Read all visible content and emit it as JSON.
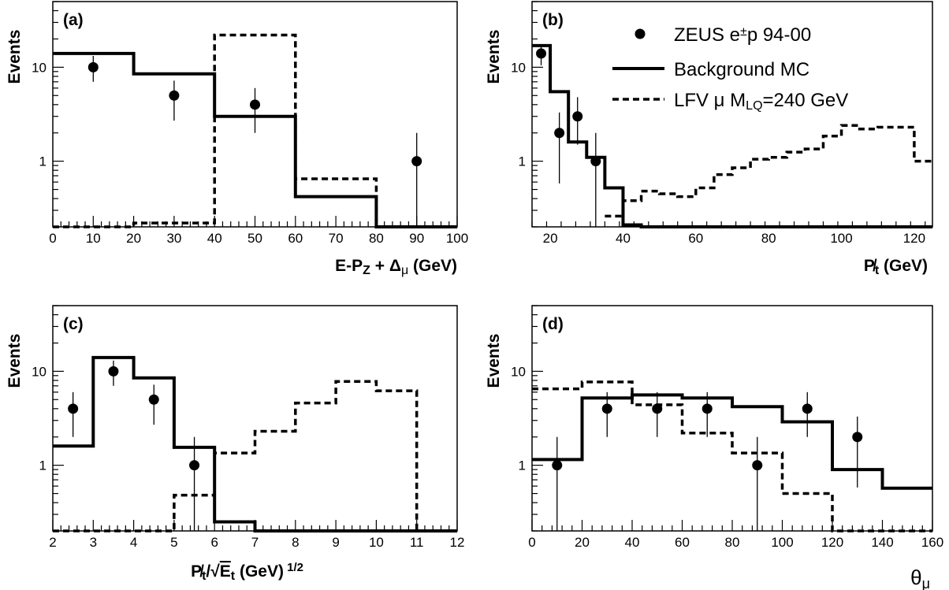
{
  "chart_data": [
    {
      "type": "histogram",
      "panel_label": "(a)",
      "xlabel": "E-P_Z + Δ_μ (GeV)",
      "ylabel": "Events",
      "xlim": [
        0,
        100
      ],
      "ylim": [
        0.2,
        50
      ],
      "log_y": true,
      "x_ticks": [
        0,
        10,
        20,
        30,
        40,
        50,
        60,
        70,
        80,
        90,
        100
      ],
      "x_tick_labels": [
        "0",
        "10",
        "20",
        "30",
        "40",
        "50",
        "60",
        "70",
        "80",
        "90",
        "100"
      ],
      "y_tick_labels": [
        "1",
        "10"
      ],
      "series": [
        {
          "name": "ZEUS e±p 94-00",
          "style": "points",
          "points": [
            {
              "x": 10,
              "y": 10,
              "lo": 7,
              "hi": 13.2
            },
            {
              "x": 30,
              "y": 5,
              "lo": 2.7,
              "hi": 7.2
            },
            {
              "x": 50,
              "y": 4,
              "lo": 2.0,
              "hi": 6.0
            },
            {
              "x": 90,
              "y": 1,
              "lo": 0.2,
              "hi": 2.0
            }
          ]
        },
        {
          "name": "Background MC",
          "style": "solid",
          "edges": [
            0,
            20,
            40,
            60,
            80,
            100
          ],
          "values": [
            14,
            8.5,
            3.0,
            0.42,
            0.19
          ]
        },
        {
          "name": "LFV μ M_LQ=240 GeV",
          "style": "dashed",
          "edges": [
            0,
            20,
            40,
            60,
            80,
            100
          ],
          "values": [
            0.2,
            0.22,
            22,
            0.65,
            0.19
          ]
        }
      ]
    },
    {
      "type": "histogram",
      "panel_label": "(b)",
      "xlabel": "P̸_t (GeV)",
      "ylabel": "Events",
      "xlim": [
        15,
        125
      ],
      "ylim": [
        0.2,
        50
      ],
      "log_y": true,
      "x_ticks": [
        20,
        40,
        60,
        80,
        100,
        120
      ],
      "x_tick_labels": [
        "20",
        "40",
        "60",
        "80",
        "100",
        "120"
      ],
      "y_tick_labels": [
        "1",
        "10"
      ],
      "series": [
        {
          "name": "ZEUS e±p 94-00",
          "style": "points",
          "points": [
            {
              "x": 17.5,
              "y": 14,
              "lo": 10.5,
              "hi": 17.5
            },
            {
              "x": 22.5,
              "y": 2,
              "lo": 0.58,
              "hi": 3.3
            },
            {
              "x": 27.5,
              "y": 3,
              "lo": 1.5,
              "hi": 4.8
            },
            {
              "x": 32.5,
              "y": 1,
              "lo": 0.2,
              "hi": 2.0
            }
          ]
        },
        {
          "name": "Background MC",
          "style": "solid",
          "edges": [
            15,
            20,
            25,
            30,
            35,
            40,
            45,
            125
          ],
          "values": [
            17,
            5.5,
            1.6,
            1.1,
            0.52,
            0.21,
            0.19
          ]
        },
        {
          "name": "LFV μ M_LQ=240 GeV",
          "style": "dashed",
          "edges": [
            35,
            40,
            45,
            50,
            55,
            60,
            65,
            70,
            75,
            80,
            85,
            90,
            95,
            100,
            105,
            110,
            115,
            120,
            125
          ],
          "values": [
            0.26,
            0.38,
            0.48,
            0.45,
            0.42,
            0.52,
            0.72,
            0.85,
            1.05,
            1.1,
            1.25,
            1.35,
            1.85,
            2.4,
            2.2,
            2.3,
            2.3,
            1.0
          ]
        }
      ]
    },
    {
      "type": "histogram",
      "panel_label": "(c)",
      "xlabel": "P̸_t/√E_t (GeV)^1/2",
      "ylabel": "Events",
      "xlim": [
        2,
        12
      ],
      "ylim": [
        0.2,
        50
      ],
      "log_y": true,
      "x_ticks": [
        2,
        3,
        4,
        5,
        6,
        7,
        8,
        9,
        10,
        11,
        12
      ],
      "x_tick_labels": [
        "2",
        "3",
        "4",
        "5",
        "6",
        "7",
        "8",
        "9",
        "10",
        "11",
        "12"
      ],
      "y_tick_labels": [
        "1",
        "10"
      ],
      "series": [
        {
          "name": "ZEUS e±p 94-00",
          "style": "points",
          "points": [
            {
              "x": 2.5,
              "y": 4,
              "lo": 2.0,
              "hi": 6.0
            },
            {
              "x": 3.5,
              "y": 10,
              "lo": 7,
              "hi": 13
            },
            {
              "x": 4.5,
              "y": 5,
              "lo": 2.7,
              "hi": 7.2
            },
            {
              "x": 5.5,
              "y": 1,
              "lo": 0.2,
              "hi": 2.0
            }
          ]
        },
        {
          "name": "Background MC",
          "style": "solid",
          "edges": [
            2,
            3,
            4,
            5,
            6,
            7,
            12
          ],
          "values": [
            1.6,
            14,
            8.5,
            1.55,
            0.25,
            0.19
          ]
        },
        {
          "name": "LFV μ M_LQ=240 GeV",
          "style": "dashed",
          "edges": [
            2,
            5,
            6,
            7,
            8,
            9,
            10,
            11,
            12
          ],
          "values": [
            0.2,
            0.48,
            1.35,
            2.3,
            4.6,
            7.8,
            6.2,
            0.19
          ]
        }
      ]
    },
    {
      "type": "histogram",
      "panel_label": "(d)",
      "xlabel": "θ_μ",
      "ylabel": "Events",
      "xlim": [
        0,
        160
      ],
      "ylim": [
        0.2,
        50
      ],
      "log_y": true,
      "x_ticks": [
        0,
        20,
        40,
        60,
        80,
        100,
        120,
        140,
        160
      ],
      "x_tick_labels": [
        "0",
        "20",
        "40",
        "60",
        "80",
        "100",
        "120",
        "140",
        "160"
      ],
      "y_tick_labels": [
        "1",
        "10"
      ],
      "series": [
        {
          "name": "ZEUS e±p 94-00",
          "style": "points",
          "points": [
            {
              "x": 10,
              "y": 1,
              "lo": 0.2,
              "hi": 2.0
            },
            {
              "x": 30,
              "y": 4,
              "lo": 2.0,
              "hi": 6.0
            },
            {
              "x": 50,
              "y": 4,
              "lo": 2.0,
              "hi": 6.0
            },
            {
              "x": 70,
              "y": 4,
              "lo": 2.0,
              "hi": 6.0
            },
            {
              "x": 90,
              "y": 1,
              "lo": 0.2,
              "hi": 2.0
            },
            {
              "x": 110,
              "y": 4,
              "lo": 2.0,
              "hi": 6.0
            },
            {
              "x": 130,
              "y": 2,
              "lo": 0.58,
              "hi": 3.3
            }
          ]
        },
        {
          "name": "Background MC",
          "style": "solid",
          "edges": [
            0,
            20,
            40,
            60,
            80,
            100,
            120,
            140,
            160
          ],
          "values": [
            1.15,
            5.2,
            5.6,
            5.2,
            4.2,
            2.9,
            0.9,
            0.57
          ]
        },
        {
          "name": "LFV μ M_LQ=240 GeV",
          "style": "dashed",
          "edges": [
            0,
            20,
            40,
            60,
            70,
            80,
            90,
            100,
            120,
            160
          ],
          "values": [
            6.5,
            7.7,
            4.4,
            2.2,
            2.2,
            1.35,
            1.35,
            0.5,
            0.19
          ]
        }
      ]
    }
  ],
  "legend": {
    "entries": [
      {
        "label": "ZEUS e",
        "sup": "±",
        "tail": "p 94-00",
        "style": "points"
      },
      {
        "label": "Background MC",
        "style": "solid"
      },
      {
        "label": "LFV μ  M",
        "sub": "LQ",
        "tail": "=240 GeV",
        "style": "dashed"
      }
    ]
  }
}
